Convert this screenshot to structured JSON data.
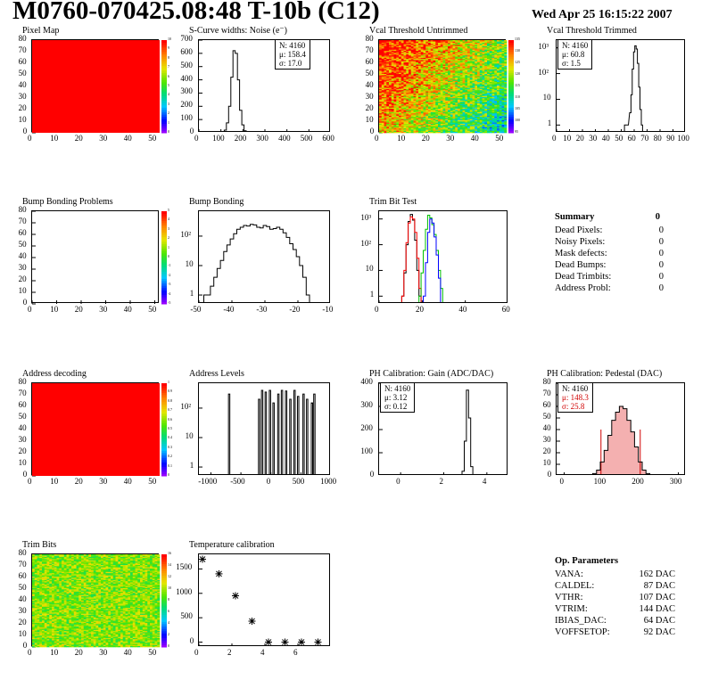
{
  "header": {
    "title": "M0760-070425.08:48 T-10b (C12)",
    "date": "Wed Apr 25 16:15:22 2007"
  },
  "chart_data": [
    {
      "id": "pixel_map",
      "type": "heatmap",
      "title": "Pixel Map",
      "xlim": [
        0,
        52
      ],
      "ylim": [
        0,
        80
      ],
      "xticks": [
        "0",
        "10",
        "20",
        "30",
        "40",
        "50"
      ],
      "yticks": [
        "0",
        "10",
        "20",
        "30",
        "40",
        "50",
        "60",
        "70",
        "80"
      ],
      "fill": "uniform",
      "value": 10,
      "colorbar": {
        "min": 0,
        "max": 10,
        "ticks": [
          "0",
          "1",
          "2",
          "3",
          "4",
          "5",
          "6",
          "7",
          "8",
          "9",
          "10"
        ]
      }
    },
    {
      "id": "scurve_noise",
      "type": "histogram",
      "title": "S-Curve widths: Noise (e⁻)",
      "xlim": [
        0,
        600
      ],
      "ylim": [
        0,
        700
      ],
      "log": false,
      "xticks": [
        "0",
        "100",
        "200",
        "300",
        "400",
        "500",
        "600"
      ],
      "yticks": [
        "0",
        "100",
        "200",
        "300",
        "400",
        "500",
        "600",
        "700"
      ],
      "stats": {
        "n": "N: 4160",
        "mean": "μ: 158.4",
        "sigma": "σ: 17.0"
      },
      "bins": [
        [
          110,
          5
        ],
        [
          120,
          20
        ],
        [
          130,
          75
        ],
        [
          140,
          200
        ],
        [
          150,
          420
        ],
        [
          160,
          620
        ],
        [
          170,
          600
        ],
        [
          180,
          400
        ],
        [
          190,
          170
        ],
        [
          200,
          60
        ],
        [
          210,
          15
        ],
        [
          220,
          4
        ],
        [
          230,
          1
        ]
      ]
    },
    {
      "id": "vcal_untrimmed",
      "type": "heatmap",
      "title": "Vcal Threshold Untrimmed",
      "xlim": [
        0,
        52
      ],
      "ylim": [
        0,
        80
      ],
      "xticks": [
        "0",
        "10",
        "20",
        "30",
        "40",
        "50"
      ],
      "yticks": [
        "0",
        "10",
        "20",
        "30",
        "40",
        "50",
        "60",
        "70",
        "80"
      ],
      "fill": "gradient",
      "colorbar": {
        "min": 95,
        "max": 135,
        "ticks": [
          "95",
          "100",
          "105",
          "110",
          "115",
          "120",
          "125",
          "130",
          "135"
        ]
      }
    },
    {
      "id": "vcal_trimmed",
      "type": "histogram",
      "title": "Vcal Threshold Trimmed",
      "xlim": [
        0,
        100
      ],
      "ylim": [
        0.5,
        2000
      ],
      "log": true,
      "xticks": [
        "0",
        "10",
        "20",
        "30",
        "40",
        "50",
        "60",
        "70",
        "80",
        "90",
        "100"
      ],
      "yticks": [
        "1",
        "10",
        "10²",
        "10³"
      ],
      "stats": {
        "n": "N: 4160",
        "mean": "μ: 60.8",
        "sigma": "σ: 1.5"
      },
      "bins": [
        [
          53,
          1
        ],
        [
          55,
          1
        ],
        [
          57,
          3
        ],
        [
          58,
          15
        ],
        [
          59,
          150
        ],
        [
          60,
          700
        ],
        [
          61,
          1200
        ],
        [
          62,
          900
        ],
        [
          63,
          250
        ],
        [
          64,
          30
        ],
        [
          65,
          4
        ],
        [
          66,
          1
        ]
      ]
    },
    {
      "id": "bump_problems",
      "type": "heatmap",
      "title": "Bump Bonding Problems",
      "xlim": [
        0,
        52
      ],
      "ylim": [
        0,
        80
      ],
      "xticks": [
        "0",
        "10",
        "20",
        "30",
        "40",
        "50"
      ],
      "yticks": [
        "0",
        "10",
        "20",
        "30",
        "40",
        "50",
        "60",
        "70",
        "80"
      ],
      "fill": "none",
      "colorbar": {
        "min": -5,
        "max": 5,
        "ticks": [
          "-5",
          "-4",
          "-3",
          "-2",
          "-1",
          "0",
          "1",
          "2",
          "3",
          "4",
          "5"
        ]
      }
    },
    {
      "id": "bump_bonding",
      "type": "histogram",
      "title": "Bump Bonding",
      "xlim": [
        -50,
        -10
      ],
      "ylim": [
        0.5,
        700
      ],
      "log": true,
      "xticks": [
        "-50",
        "-40",
        "-30",
        "-20",
        "-10"
      ],
      "yticks": [
        "1",
        "10",
        "10²"
      ],
      "bins": [
        [
          -48,
          1
        ],
        [
          -47,
          1
        ],
        [
          -46,
          2
        ],
        [
          -45,
          4
        ],
        [
          -44,
          8
        ],
        [
          -43,
          15
        ],
        [
          -42,
          30
        ],
        [
          -41,
          50
        ],
        [
          -40,
          80
        ],
        [
          -39,
          120
        ],
        [
          -38,
          170
        ],
        [
          -37,
          200
        ],
        [
          -36,
          230
        ],
        [
          -35,
          220
        ],
        [
          -34,
          250
        ],
        [
          -33,
          240
        ],
        [
          -32,
          200
        ],
        [
          -31,
          190
        ],
        [
          -30,
          230
        ],
        [
          -29,
          210
        ],
        [
          -28,
          170
        ],
        [
          -27,
          180
        ],
        [
          -26,
          200
        ],
        [
          -25,
          170
        ],
        [
          -24,
          130
        ],
        [
          -23,
          90
        ],
        [
          -22,
          55
        ],
        [
          -21,
          35
        ],
        [
          -20,
          20
        ],
        [
          -19,
          10
        ],
        [
          -18,
          4
        ],
        [
          -17,
          1
        ]
      ]
    },
    {
      "id": "trim_bit_test",
      "type": "histogram",
      "title": "Trim Bit Test",
      "xlim": [
        0,
        60
      ],
      "ylim": [
        0.5,
        2000
      ],
      "log": true,
      "xticks": [
        "0",
        "20",
        "40",
        "60"
      ],
      "yticks": [
        "1",
        "10",
        "10²",
        "10³"
      ],
      "series": [
        {
          "color": "#000000",
          "bins": [
            [
              11,
              1
            ],
            [
              12,
              8
            ],
            [
              13,
              100
            ],
            [
              14,
              800
            ],
            [
              15,
              1500
            ],
            [
              16,
              900
            ],
            [
              17,
              150
            ],
            [
              18,
              10
            ],
            [
              19,
              1
            ]
          ]
        },
        {
          "color": "#ff0000",
          "bins": [
            [
              11,
              1
            ],
            [
              12,
              10
            ],
            [
              13,
              120
            ],
            [
              14,
              700
            ],
            [
              15,
              1200
            ],
            [
              16,
              1000
            ],
            [
              17,
              300
            ],
            [
              18,
              30
            ],
            [
              19,
              2
            ]
          ]
        },
        {
          "color": "#00c000",
          "bins": [
            [
              19,
              1
            ],
            [
              20,
              8
            ],
            [
              21,
              60
            ],
            [
              22,
              400
            ],
            [
              23,
              1400
            ],
            [
              24,
              1100
            ],
            [
              25,
              600
            ],
            [
              26,
              250
            ],
            [
              27,
              60
            ],
            [
              28,
              10
            ],
            [
              29,
              2
            ]
          ]
        },
        {
          "color": "#0000ff",
          "bins": [
            [
              21,
              1
            ],
            [
              22,
              20
            ],
            [
              23,
              300
            ],
            [
              24,
              1000
            ],
            [
              25,
              700
            ],
            [
              26,
              200
            ],
            [
              27,
              40
            ],
            [
              28,
              5
            ]
          ]
        }
      ]
    },
    {
      "id": "address_decoding",
      "type": "heatmap",
      "title": "Address decoding",
      "xlim": [
        0,
        52
      ],
      "ylim": [
        0,
        80
      ],
      "xticks": [
        "0",
        "10",
        "20",
        "30",
        "40",
        "50"
      ],
      "yticks": [
        "0",
        "10",
        "20",
        "30",
        "40",
        "50",
        "60",
        "70",
        "80"
      ],
      "fill": "uniform",
      "value": 1,
      "colorbar": {
        "min": 0,
        "max": 1,
        "ticks": [
          "0",
          "0.1",
          "0.2",
          "0.3",
          "0.4",
          "0.5",
          "0.6",
          "0.7",
          "0.8",
          "0.9",
          "1"
        ]
      }
    },
    {
      "id": "address_levels",
      "type": "histogram",
      "title": "Address Levels",
      "xlim": [
        -1200,
        1000
      ],
      "ylim": [
        0.5,
        700
      ],
      "log": true,
      "xticks": [
        "-1000",
        "-500",
        "0",
        "500",
        "1000"
      ],
      "yticks": [
        "1",
        "10",
        "10²"
      ],
      "bins": [
        [
          -700,
          300
        ],
        [
          -200,
          200
        ],
        [
          -150,
          400
        ],
        [
          -90,
          350
        ],
        [
          -20,
          400
        ],
        [
          40,
          150
        ],
        [
          120,
          300
        ],
        [
          180,
          400
        ],
        [
          250,
          380
        ],
        [
          320,
          200
        ],
        [
          390,
          400
        ],
        [
          450,
          250
        ],
        [
          540,
          300
        ],
        [
          600,
          200
        ],
        [
          680,
          150
        ],
        [
          720,
          300
        ]
      ]
    },
    {
      "id": "ph_gain",
      "type": "histogram",
      "title": "PH Calibration: Gain (ADC/DAC)",
      "xlim": [
        -1,
        5
      ],
      "ylim": [
        0,
        400
      ],
      "log": false,
      "xticks": [
        "0",
        "2",
        "4"
      ],
      "yticks": [
        "0",
        "100",
        "200",
        "300",
        "400"
      ],
      "stats": {
        "n": "N: 4160",
        "mean": "μ: 3.12",
        "sigma": "σ: 0.12"
      },
      "bins": [
        [
          2.8,
          2
        ],
        [
          2.9,
          20
        ],
        [
          3.0,
          150
        ],
        [
          3.1,
          370
        ],
        [
          3.2,
          250
        ],
        [
          3.3,
          40
        ],
        [
          3.4,
          5
        ]
      ]
    },
    {
      "id": "ph_pedestal",
      "type": "histogram",
      "title": "PH Calibration: Pedestal (DAC)",
      "xlim": [
        -20,
        320
      ],
      "ylim": [
        0,
        80
      ],
      "log": false,
      "xticks": [
        "0",
        "100",
        "200",
        "300"
      ],
      "yticks": [
        "0",
        "10",
        "20",
        "30",
        "40",
        "50",
        "60",
        "70",
        "80"
      ],
      "stats": {
        "n": "N: 4160",
        "mean": "μ: 148.3",
        "sigma": "σ: 25.8",
        "color": "#d00000"
      },
      "bins": [
        [
          80,
          2
        ],
        [
          90,
          5
        ],
        [
          100,
          12
        ],
        [
          110,
          22
        ],
        [
          120,
          35
        ],
        [
          130,
          48
        ],
        [
          140,
          55
        ],
        [
          150,
          60
        ],
        [
          160,
          58
        ],
        [
          170,
          48
        ],
        [
          180,
          38
        ],
        [
          190,
          25
        ],
        [
          200,
          12
        ],
        [
          210,
          5
        ],
        [
          220,
          2
        ]
      ]
    },
    {
      "id": "trim_bits",
      "type": "heatmap",
      "title": "Trim Bits",
      "xlim": [
        0,
        52
      ],
      "ylim": [
        0,
        80
      ],
      "xticks": [
        "0",
        "10",
        "20",
        "30",
        "40",
        "50"
      ],
      "yticks": [
        "0",
        "10",
        "20",
        "30",
        "40",
        "50",
        "60",
        "70",
        "80"
      ],
      "fill": "noise",
      "value": 10,
      "colorbar": {
        "min": 0,
        "max": 16,
        "ticks": [
          "0",
          "2",
          "4",
          "6",
          "8",
          "10",
          "12",
          "14",
          "16"
        ]
      }
    },
    {
      "id": "temperature",
      "type": "scatter",
      "title": "Temperature calibration",
      "xlim": [
        0,
        8
      ],
      "ylim": [
        -100,
        1800
      ],
      "xticks": [
        "0",
        "2",
        "4",
        "6"
      ],
      "yticks": [
        "0",
        "500",
        "1000",
        "1500"
      ],
      "points": [
        [
          0,
          1700
        ],
        [
          1,
          1400
        ],
        [
          2,
          950
        ],
        [
          3,
          430
        ],
        [
          4,
          0
        ],
        [
          5,
          0
        ],
        [
          6,
          0
        ],
        [
          7,
          0
        ]
      ]
    }
  ],
  "summary": {
    "title": "Summary",
    "total": "0",
    "rows": [
      {
        "label": "Dead Pixels:",
        "value": "0"
      },
      {
        "label": "Noisy Pixels:",
        "value": "0"
      },
      {
        "label": "Mask defects:",
        "value": "0"
      },
      {
        "label": "Dead Bumps:",
        "value": "0"
      },
      {
        "label": "Dead Trimbits:",
        "value": "0"
      },
      {
        "label": "Address Probl:",
        "value": "0"
      }
    ]
  },
  "op_params": {
    "title": "Op. Parameters",
    "rows": [
      {
        "label": "VANA:",
        "value": "162 DAC"
      },
      {
        "label": "CALDEL:",
        "value": "87 DAC"
      },
      {
        "label": "VTHR:",
        "value": "107 DAC"
      },
      {
        "label": "VTRIM:",
        "value": "144 DAC"
      },
      {
        "label": "IBIAS_DAC:",
        "value": "64 DAC"
      },
      {
        "label": "VOFFSETOP:",
        "value": "92 DAC"
      }
    ]
  }
}
